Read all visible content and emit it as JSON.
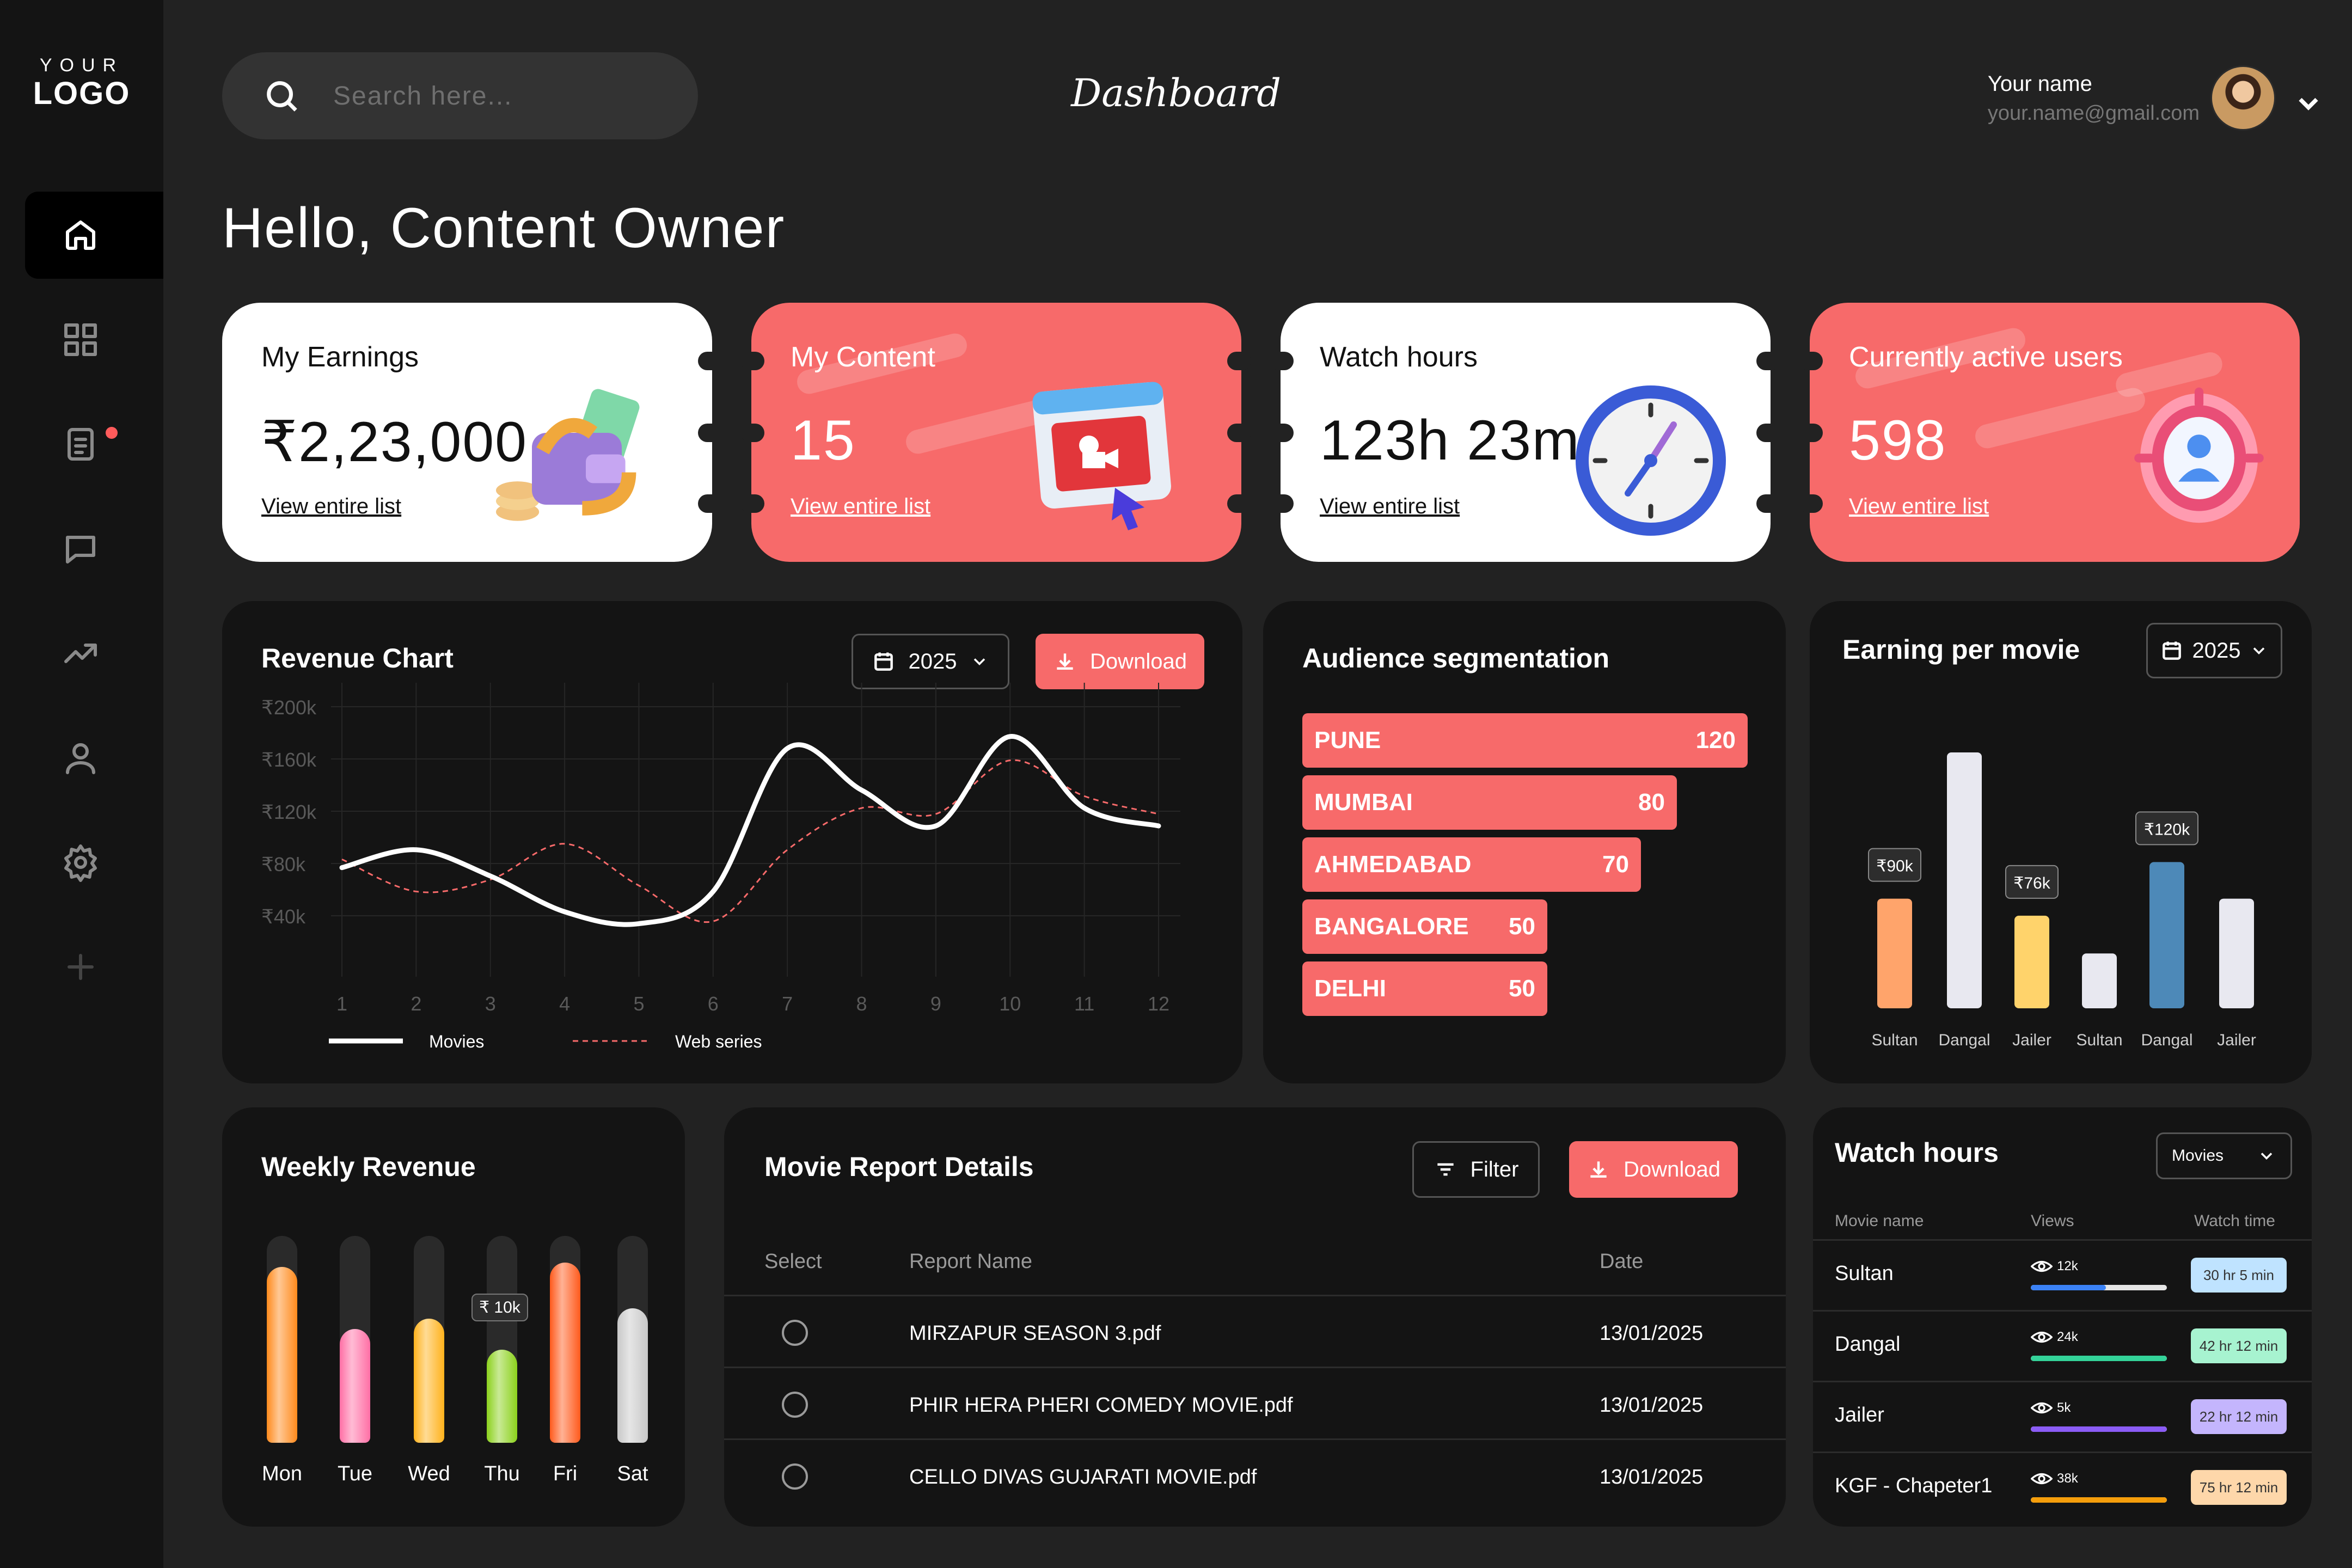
{
  "sidebar": {
    "logo_top": "YOUR",
    "logo_bottom": "LOGO",
    "items": [
      "home-icon",
      "grid-icon",
      "report-icon",
      "chat-icon",
      "trend-icon",
      "user-icon",
      "settings-icon",
      "plus-icon"
    ]
  },
  "header": {
    "search_placeholder": "Search here...",
    "title": "Dashboard",
    "user_name": "Your name",
    "user_email": "your.name@gmail.com"
  },
  "greeting": "Hello, Content Owner",
  "stats": [
    {
      "title": "My Earnings",
      "value": "₹2,23,000",
      "link": "View entire list",
      "theme": "white"
    },
    {
      "title": "My Content",
      "value": "15",
      "link": "View entire list",
      "theme": "coral"
    },
    {
      "title": "Watch hours",
      "value": "123h 23m",
      "link": "View entire list",
      "theme": "white"
    },
    {
      "title": "Currently active users",
      "value": "598",
      "link": "View entire list",
      "theme": "coral"
    }
  ],
  "revenue": {
    "title": "Revenue Chart",
    "year": "2025",
    "download": "Download",
    "legend_movies": "Movies",
    "legend_web": "Web series"
  },
  "audience": {
    "title": "Audience segmentation",
    "items": [
      {
        "city": "PUNE",
        "value": "120"
      },
      {
        "city": "MUMBAI",
        "value": "80"
      },
      {
        "city": "AHMEDABAD",
        "value": "70"
      },
      {
        "city": "BANGALORE",
        "value": "50"
      },
      {
        "city": "DELHI",
        "value": "50"
      }
    ]
  },
  "earning_per_movie": {
    "title": "Earning per movie",
    "year": "2025"
  },
  "weekly": {
    "title": "Weekly Revenue",
    "tooltip": "₹ 10k"
  },
  "report": {
    "title": "Movie Report Details",
    "filter": "Filter",
    "download": "Download",
    "headers": {
      "select": "Select",
      "name": "Report Name",
      "date": "Date"
    },
    "rows": [
      {
        "name": "MIRZAPUR SEASON 3.pdf",
        "date": "13/01/2025"
      },
      {
        "name": "PHIR HERA PHERI COMEDY MOVIE.pdf",
        "date": "13/01/2025"
      },
      {
        "name": "CELLO DIVAS GUJARATI MOVIE.pdf",
        "date": "13/01/2025"
      }
    ]
  },
  "watch": {
    "title": "Watch hours",
    "filter": "Movies",
    "headers": {
      "name": "Movie name",
      "views": "Views",
      "time": "Watch time"
    },
    "rows": [
      {
        "name": "Sultan",
        "views": "12k",
        "time": "30 hr 5 min",
        "progress": 0.55,
        "bar_color": "#3b82f6",
        "badge_color": "#bfe3ff"
      },
      {
        "name": "Dangal",
        "views": "24k",
        "time": "42 hr 12 min",
        "progress": 1.0,
        "bar_color": "#34d399",
        "badge_color": "#a7f3d0"
      },
      {
        "name": "Jailer",
        "views": "5k",
        "time": "22 hr 12 min",
        "progress": 1.0,
        "bar_color": "#8b5cf6",
        "badge_color": "#c4b5fd"
      },
      {
        "name": "KGF - Chapeter1",
        "views": "38k",
        "time": "75 hr 12 min",
        "progress": 1.0,
        "bar_color": "#f59e0b",
        "badge_color": "#fed7aa"
      }
    ]
  },
  "chart_data": [
    {
      "type": "line",
      "title": "Revenue Chart",
      "x": [
        1,
        2,
        3,
        4,
        5,
        6,
        7,
        8,
        9,
        10,
        11,
        12
      ],
      "ytick_labels": [
        "₹200k",
        "₹160k",
        "₹120k",
        "₹80k",
        "₹40k"
      ],
      "ylim": [
        0,
        200
      ],
      "grid": true,
      "legend": "bottom",
      "series": [
        {
          "name": "Movies",
          "values": [
            65,
            80,
            58,
            28,
            18,
            45,
            165,
            130,
            100,
            175,
            115,
            100
          ]
        },
        {
          "name": "Web series",
          "values": [
            72,
            45,
            55,
            85,
            50,
            20,
            80,
            115,
            110,
            155,
            125,
            110
          ]
        }
      ]
    },
    {
      "type": "bar",
      "title": "Earning per movie",
      "categories": [
        "Sultan",
        "Dangal",
        "Jailer",
        "Sultan",
        "Dangal",
        "Jailer"
      ],
      "values": [
        90,
        210,
        76,
        45,
        120,
        90
      ],
      "data_labels": [
        "₹90k",
        "",
        "₹76k",
        "",
        "₹120k",
        ""
      ],
      "colors": [
        "#ffa46b",
        "#e8e8f0",
        "#ffd36b",
        "#e8e8f0",
        "#4d89b8",
        "#e8e8f0"
      ]
    },
    {
      "type": "bar",
      "title": "Weekly Revenue",
      "categories": [
        "Mon",
        "Tue",
        "Wed",
        "Thu",
        "Fri",
        "Sat"
      ],
      "values": [
        0.85,
        0.55,
        0.6,
        0.45,
        0.87,
        0.65
      ],
      "colors": [
        "#ff8a1c",
        "#ff6fa5",
        "#ffb21c",
        "#8bd11c",
        "#ff5a1c",
        "#c8c8c8"
      ]
    }
  ]
}
